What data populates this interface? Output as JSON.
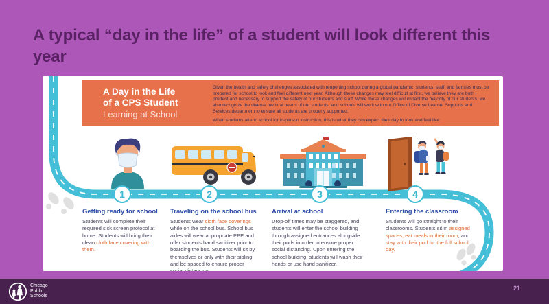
{
  "slide": {
    "title": "A typical “day in the life” of a student will look different this year",
    "page_number": "21"
  },
  "banner": {
    "title_line1": "A Day in the Life",
    "title_line2": "of a CPS Student",
    "subtitle": "Learning at School",
    "paragraph1": "Given the health and safety challenges associated with reopening school during a global pandemic, students, staff, and families must be prepared for school to look and feel different next year. Although these changes may feel difficult at first, we believe they are both prudent and necessary to support the safety of our students and staff. While these changes will impact the majority of our students, we also recognize the diverse medical needs of our students, and schools will work with our Office of Diverse Learner Supports and Services department to ensure all students are properly supported.",
    "paragraph2": "When students attend school for in-person instruction, this is what they can expect their day to look and feel like:"
  },
  "steps": [
    {
      "number": "1",
      "title": "Getting ready for school",
      "illustration": "masked-student-illustration",
      "body": [
        {
          "t": "Students will complete their required sick screen protocol at home. Students will bring their clean ",
          "hl": false
        },
        {
          "t": "cloth face covering with them.",
          "hl": true
        }
      ]
    },
    {
      "number": "2",
      "title": "Traveling on the school bus",
      "illustration": "school-bus-illustration",
      "body": [
        {
          "t": "Students wear ",
          "hl": false
        },
        {
          "t": "cloth face coverings",
          "hl": true
        },
        {
          "t": " while on the school bus. School bus aides will wear appropriate PPE and offer students hand sanitizer prior to boarding the bus. Students will sit by themselves or only with their sibling and be spaced to ensure proper social distancing.",
          "hl": false
        }
      ]
    },
    {
      "number": "3",
      "title": "Arrival at school",
      "illustration": "school-building-illustration",
      "body": [
        {
          "t": "Drop-off times may be staggered, and students will enter the school building through assigned entrances alongside their pods in order to ensure proper social distancing. Upon entering the school building, students will wash their hands or use hand sanitizer.",
          "hl": false
        }
      ]
    },
    {
      "number": "4",
      "title": "Entering the classroom",
      "illustration": "classroom-door-illustration",
      "body": [
        {
          "t": "Students will go straight to their classrooms. Students sit in ",
          "hl": false
        },
        {
          "t": "assigned spaces, eat meals in their room",
          "hl": true
        },
        {
          "t": ", and ",
          "hl": false
        },
        {
          "t": "stay with their pod for the full school day.",
          "hl": true
        }
      ]
    }
  ],
  "footer": {
    "logo_line1": "Chicago",
    "logo_line2": "Public",
    "logo_line3": "Schools"
  },
  "colors": {
    "background_purple": "#AD57B9",
    "title_purple": "#5A2165",
    "banner_orange": "#E7714A",
    "road_teal": "#45BFD7",
    "heading_blue": "#2E4CA8",
    "highlight_orange": "#E06C38",
    "footer_purple": "#48214F",
    "bus_yellow": "#F5A42F"
  }
}
